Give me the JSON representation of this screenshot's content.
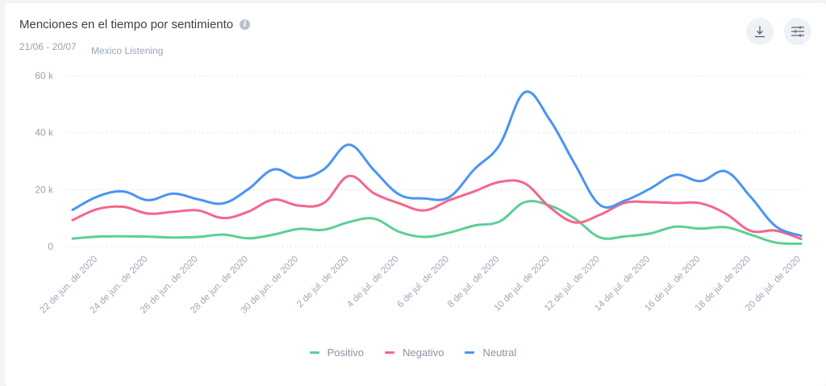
{
  "header": {
    "title": "Menciones en el tiempo por sentimiento",
    "date_range": "21/06 - 20/07",
    "source": "Mexico Listening",
    "info_icon": "info-icon",
    "download_icon": "download-icon",
    "settings_icon": "sliders-icon"
  },
  "legend": [
    {
      "label": "Positivo",
      "color": "#5ccf96"
    },
    {
      "label": "Negativo",
      "color": "#f5668a"
    },
    {
      "label": "Neutral",
      "color": "#4a94f5"
    }
  ],
  "chart_data": {
    "type": "line",
    "title": "Menciones en el tiempo por sentimiento",
    "xlabel": "",
    "ylabel": "",
    "ylim": [
      0,
      60000
    ],
    "yticks": [
      0,
      20000,
      40000,
      60000
    ],
    "ytick_labels": [
      "0",
      "20 k",
      "40 k",
      "60 k"
    ],
    "grid": true,
    "legend_position": "bottom",
    "x": [
      "21/06",
      "22/06",
      "23/06",
      "24/06",
      "25/06",
      "26/06",
      "27/06",
      "28/06",
      "29/06",
      "30/06",
      "01/07",
      "02/07",
      "03/07",
      "04/07",
      "05/07",
      "06/07",
      "07/07",
      "08/07",
      "09/07",
      "10/07",
      "11/07",
      "12/07",
      "13/07",
      "14/07",
      "15/07",
      "16/07",
      "17/07",
      "18/07",
      "19/07",
      "20/07"
    ],
    "xtick_labels": [
      "22 de jun. de 2020",
      "24 de jun. de 2020",
      "26 de jun. de 2020",
      "28 de jun. de 2020",
      "30 de jun. de 2020",
      "2 de jul. de 2020",
      "4 de jul. de 2020",
      "6 de jul. de 2020",
      "8 de jul. de 2020",
      "10 de jul. de 2020",
      "12 de jul. de 2020",
      "14 de jul. de 2020",
      "16 de jul. de 2020",
      "18 de jul. de 2020",
      "20 de jul. de 2020"
    ],
    "series": [
      {
        "name": "Positivo",
        "color": "#5ccf96",
        "values": [
          2800,
          3500,
          3600,
          3500,
          3200,
          3400,
          4200,
          2900,
          4200,
          6200,
          5900,
          8600,
          9800,
          5200,
          3400,
          4900,
          7400,
          8800,
          15600,
          14400,
          9800,
          3200,
          3600,
          4600,
          7000,
          6300,
          6800,
          4200,
          1400,
          1000
        ]
      },
      {
        "name": "Negativo",
        "color": "#f5668a",
        "values": [
          9300,
          13200,
          14000,
          11600,
          12200,
          12700,
          10000,
          12300,
          16500,
          14400,
          15300,
          24800,
          18700,
          15200,
          12700,
          16300,
          19400,
          22700,
          22200,
          13800,
          8500,
          11200,
          15400,
          15600,
          15300,
          15200,
          11600,
          5500,
          5600,
          2700
        ]
      },
      {
        "name": "Neutral",
        "color": "#4a94f5",
        "values": [
          12900,
          17600,
          19400,
          16300,
          18600,
          16600,
          15200,
          20200,
          27100,
          24100,
          27100,
          35800,
          26800,
          18300,
          16900,
          17400,
          27200,
          35700,
          54200,
          44500,
          28900,
          14600,
          16200,
          20400,
          25200,
          23000,
          26400,
          17400,
          7100,
          3800
        ]
      }
    ]
  }
}
